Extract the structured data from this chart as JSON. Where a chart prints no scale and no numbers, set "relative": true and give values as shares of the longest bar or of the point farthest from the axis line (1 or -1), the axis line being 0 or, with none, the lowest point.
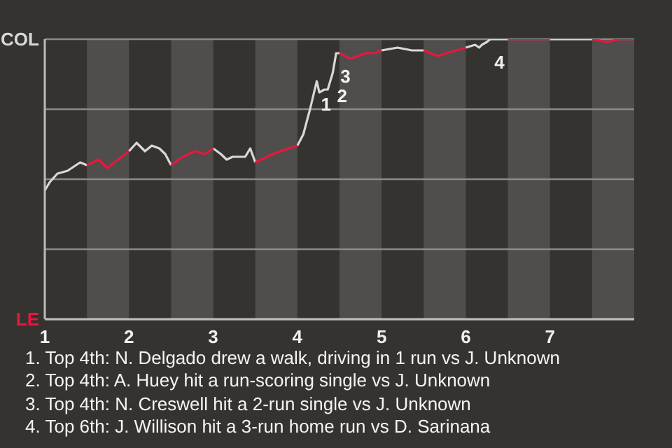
{
  "chart_data": {
    "type": "line",
    "relative": true,
    "x": [
      1,
      1.06,
      1.15,
      1.27,
      1.42,
      1.5,
      1.64,
      1.74,
      2,
      2.09,
      2.19,
      2.27,
      2.36,
      2.43,
      2.5,
      2.64,
      2.78,
      2.9,
      3,
      3.09,
      3.16,
      3.23,
      3.38,
      3.44,
      3.5,
      3.71,
      4,
      4.07,
      4.15,
      4.23,
      4.26,
      4.32,
      4.36,
      4.42,
      4.46,
      4.5,
      4.63,
      4.81,
      4.92,
      5,
      5.19,
      5.36,
      5.5,
      5.66,
      6,
      6.11,
      6.16,
      6.19,
      6.25,
      6.29,
      6.5,
      6.74,
      7,
      7.26,
      7.5,
      7.68,
      7.82,
      8
    ],
    "series": [
      {
        "color": "#d8d8d8",
        "values": [
          0.46,
          0.49,
          0.52,
          0.53,
          0.56,
          0.55,
          null,
          null,
          0.6,
          0.63,
          0.6,
          0.62,
          0.61,
          0.59,
          0.55,
          null,
          null,
          null,
          0.61,
          0.59,
          0.57,
          0.58,
          0.58,
          0.61,
          0.56,
          null,
          0.62,
          0.66,
          0.75,
          0.85,
          0.81,
          0.82,
          0.82,
          0.88,
          0.95,
          0.95,
          null,
          null,
          null,
          0.96,
          0.97,
          0.96,
          0.96,
          null,
          0.97,
          0.98,
          0.97,
          0.98,
          0.99,
          1,
          1,
          null,
          1,
          1,
          1,
          null,
          null,
          null
        ]
      },
      {
        "color": "#e8173c",
        "values": [
          null,
          null,
          null,
          null,
          null,
          0.55,
          0.57,
          0.54,
          0.6,
          null,
          null,
          null,
          null,
          null,
          0.55,
          0.58,
          0.6,
          0.59,
          0.61,
          null,
          null,
          null,
          null,
          null,
          0.56,
          0.59,
          0.62,
          null,
          null,
          null,
          null,
          null,
          null,
          null,
          null,
          0.95,
          0.93,
          0.95,
          0.95,
          0.96,
          null,
          null,
          0.96,
          0.94,
          0.97,
          null,
          null,
          null,
          null,
          null,
          1,
          1,
          1,
          null,
          1,
          0.99,
          1,
          1
        ]
      }
    ],
    "xlim": [
      1,
      8
    ],
    "xticks": [
      1,
      2,
      3,
      4,
      5,
      6,
      7
    ],
    "marker": "none",
    "line_style": "solid",
    "ref_lines": [
      {
        "axis": "y",
        "value": 1,
        "label": "COL",
        "color": "#8a8a8a"
      },
      {
        "axis": "y",
        "value": 0.75,
        "color": "#8a8a8a"
      },
      {
        "axis": "y",
        "value": 0.5,
        "color": "#8a8a8a"
      },
      {
        "axis": "y",
        "value": 0.25,
        "color": "#8a8a8a"
      },
      {
        "axis": "y",
        "value": 0,
        "label": "LE",
        "color": "#bbbbbb"
      }
    ],
    "bands": [
      {
        "axis": "x",
        "from": 1.5,
        "to": 2,
        "color": "#4f4e4c"
      },
      {
        "axis": "x",
        "from": 2.5,
        "to": 3,
        "color": "#4f4e4c"
      },
      {
        "axis": "x",
        "from": 3.5,
        "to": 4,
        "color": "#4f4e4c"
      },
      {
        "axis": "x",
        "from": 4.5,
        "to": 5,
        "color": "#4f4e4c"
      },
      {
        "axis": "x",
        "from": 5.5,
        "to": 6,
        "color": "#4f4e4c"
      },
      {
        "axis": "x",
        "from": 6.5,
        "to": 7,
        "color": "#4f4e4c"
      },
      {
        "axis": "x",
        "from": 7.5,
        "to": 8,
        "color": "#4f4e4c"
      }
    ],
    "annotations": [
      {
        "text": "1",
        "x": 4.23,
        "y": 0.85
      },
      {
        "text": "2",
        "x": 4.42,
        "y": 0.88
      },
      {
        "text": "3",
        "x": 4.46,
        "y": 0.95
      },
      {
        "text": "4",
        "x": 6.29,
        "y": 1
      },
      "1. Top 4th: N. Delgado drew a walk, driving in 1 run vs J. Unknown",
      "2. Top 4th: A. Huey hit a run-scoring single vs J. Unknown",
      "3. Top 4th: N. Creswell hit a 2-run single vs J. Unknown",
      "4. Top 6th: J. Willison hit a 3-run home run vs D. Sarinana"
    ]
  }
}
